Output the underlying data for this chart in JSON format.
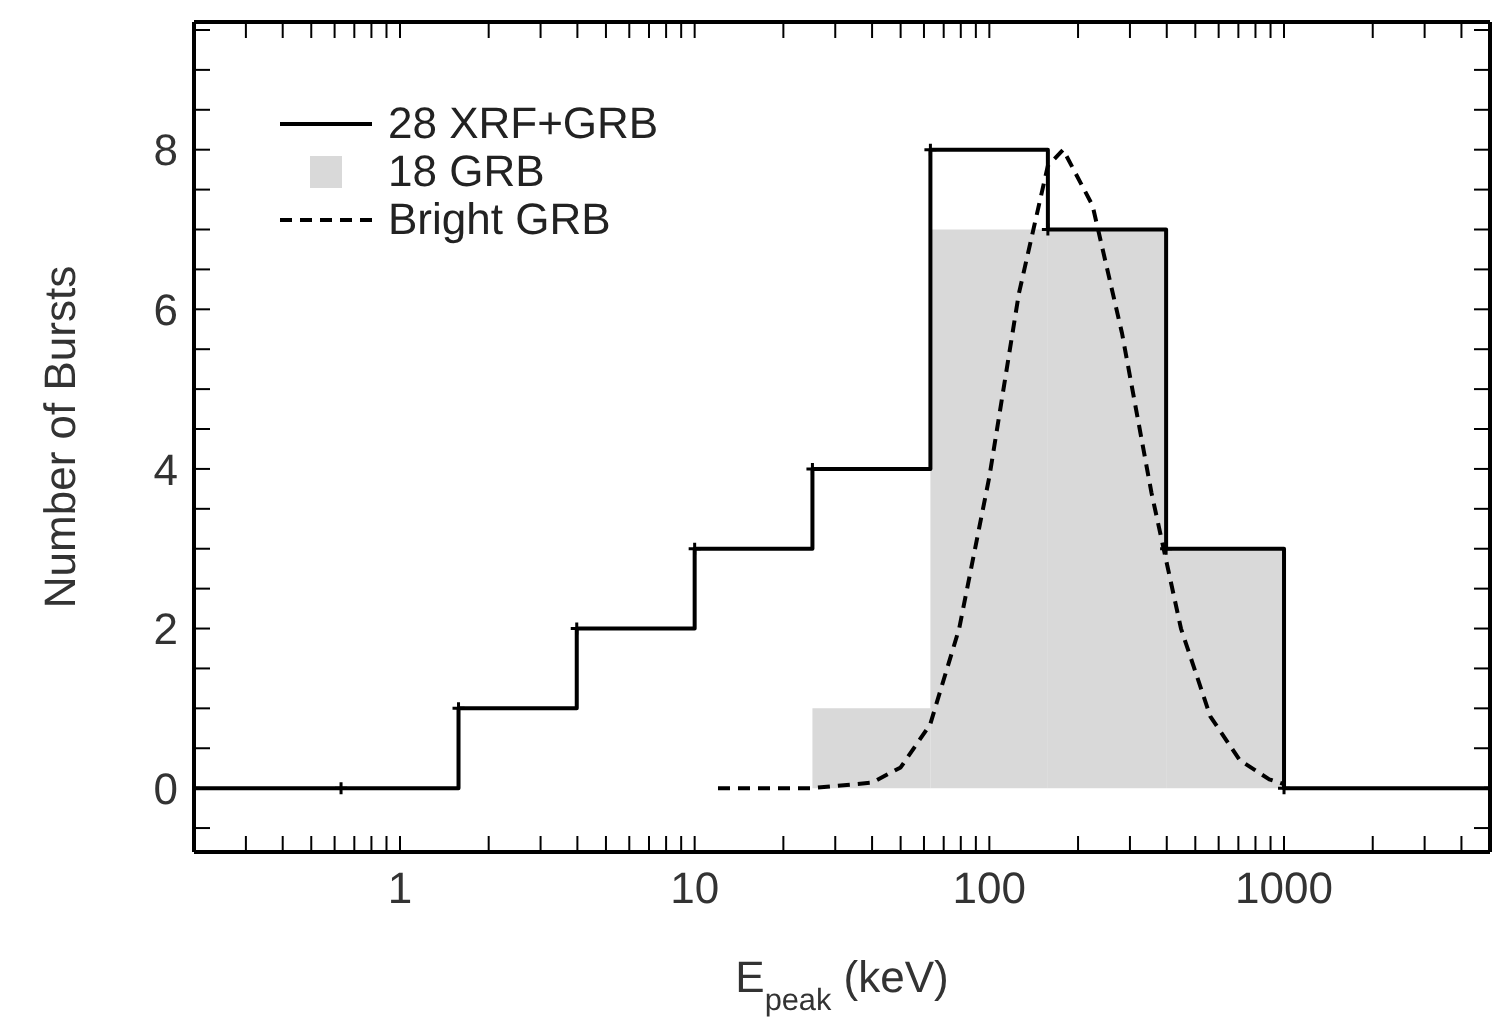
{
  "chart_data": {
    "type": "histogram",
    "xlabel": "E$_{peak}$ (keV)",
    "ylabel": "Number of Bursts",
    "log": "x",
    "xlim": [
      0.2,
      5000
    ],
    "ylim": [
      -0.8,
      9.6
    ],
    "xticks": [
      {
        "value": 0.3,
        "label": null
      },
      {
        "value": 0.4,
        "label": null
      },
      {
        "value": 0.5,
        "label": null
      },
      {
        "value": 0.6,
        "label": null
      },
      {
        "value": 0.7,
        "label": null
      },
      {
        "value": 0.8,
        "label": null
      },
      {
        "value": 0.9,
        "label": null
      },
      1,
      {
        "value": 2,
        "label": null
      },
      {
        "value": 3,
        "label": null
      },
      {
        "value": 4,
        "label": null
      },
      {
        "value": 5,
        "label": null
      },
      {
        "value": 6,
        "label": null
      },
      {
        "value": 7,
        "label": null
      },
      {
        "value": 8,
        "label": null
      },
      {
        "value": 9,
        "label": null
      },
      10,
      {
        "value": 20,
        "label": null
      },
      {
        "value": 30,
        "label": null
      },
      {
        "value": 40,
        "label": null
      },
      {
        "value": 50,
        "label": null
      },
      {
        "value": 60,
        "label": null
      },
      {
        "value": 70,
        "label": null
      },
      {
        "value": 80,
        "label": null
      },
      {
        "value": 90,
        "label": null
      },
      100,
      {
        "value": 200,
        "label": null
      },
      {
        "value": 300,
        "label": null
      },
      {
        "value": 400,
        "label": null
      },
      {
        "value": 500,
        "label": null
      },
      {
        "value": 600,
        "label": null
      },
      {
        "value": 700,
        "label": null
      },
      {
        "value": 800,
        "label": null
      },
      {
        "value": 900,
        "label": null
      },
      1000,
      {
        "value": 2000,
        "label": null
      },
      {
        "value": 3000,
        "label": null
      },
      {
        "value": 4000,
        "label": null
      }
    ],
    "yticks": [
      {
        "value": -0.5,
        "label": null
      },
      0,
      {
        "value": 0.5,
        "label": null
      },
      {
        "value": 1,
        "label": null
      },
      {
        "value": 1.5,
        "label": null
      },
      2,
      {
        "value": 2.5,
        "label": null
      },
      {
        "value": 3,
        "label": null
      },
      {
        "value": 3.5,
        "label": null
      },
      4,
      {
        "value": 4.5,
        "label": null
      },
      {
        "value": 5,
        "label": null
      },
      {
        "value": 5.5,
        "label": null
      },
      6,
      {
        "value": 6.5,
        "label": null
      },
      {
        "value": 7,
        "label": null
      },
      {
        "value": 7.5,
        "label": null
      },
      8,
      {
        "value": 8.5,
        "label": null
      },
      {
        "value": 9,
        "label": null
      },
      {
        "value": 9.5,
        "label": null
      }
    ],
    "legend": "top left",
    "series": [
      {
        "name": "28 XRF+GRB",
        "type": "step",
        "color": "#000000",
        "marker": "cross",
        "line_style": "solid",
        "x": [
          0.2,
          0.631,
          1.58,
          3.98,
          10,
          25.1,
          63.1,
          158,
          398,
          1000,
          5000
        ],
        "values": [
          0,
          0,
          1,
          2,
          3,
          4,
          8,
          7,
          3,
          0,
          0
        ]
      },
      {
        "name": "18 GRB",
        "type": "histogram",
        "color": "#d9d9d9",
        "bins": [
          25.1,
          63.1,
          158,
          398,
          1000
        ],
        "values": [
          1,
          7,
          7,
          3
        ]
      },
      {
        "name": "Bright GRB",
        "type": "line",
        "color": "#000000",
        "marker": "none",
        "line_style": "dashed",
        "x": [
          12,
          25,
          40,
          50,
          63,
          79,
          100,
          126,
          158,
          178,
          224,
          282,
          355,
          447,
          562,
          708,
          891,
          1000
        ],
        "values": [
          0,
          0,
          0.07,
          0.26,
          0.8,
          2,
          3.9,
          6.2,
          7.8,
          8,
          7.3,
          5.7,
          3.7,
          2,
          0.9,
          0.35,
          0.11,
          0.05
        ]
      }
    ]
  }
}
